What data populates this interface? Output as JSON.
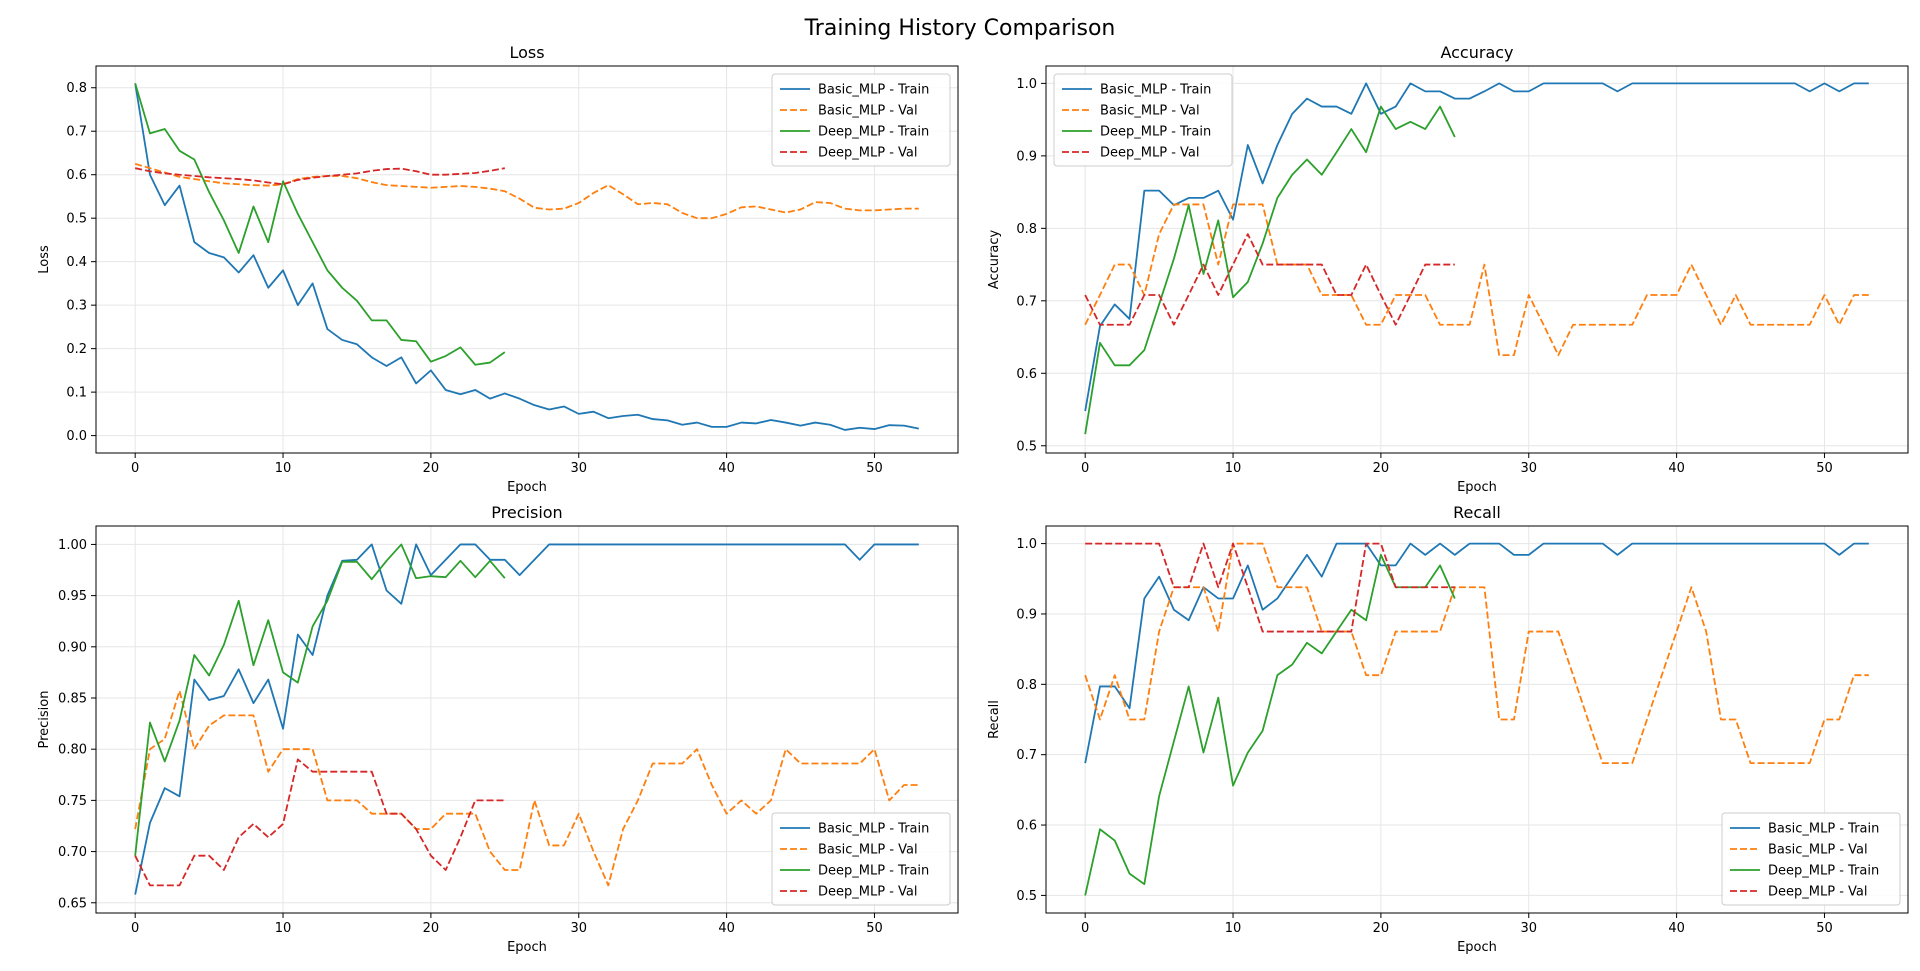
{
  "title": "Training History Comparison",
  "chart_data": [
    {
      "type": "line",
      "title": "Loss",
      "xlabel": "Epoch",
      "ylabel": "Loss",
      "xlim": [
        -2.65,
        55.65
      ],
      "ylim": [
        -0.04,
        0.85
      ],
      "xticks": [
        0,
        10,
        20,
        30,
        40,
        50
      ],
      "yticks": [
        0.0,
        0.1,
        0.2,
        0.3,
        0.4,
        0.5,
        0.6,
        0.7,
        0.8
      ],
      "ytick_decimals": 1,
      "grid": true,
      "legend_position": "top-right",
      "series": [
        {
          "name": "Basic_MLP - Train",
          "color": "#1f77b4",
          "dash": "solid",
          "start": 0,
          "values": [
            0.81,
            0.6,
            0.53,
            0.575,
            0.445,
            0.42,
            0.41,
            0.375,
            0.415,
            0.34,
            0.38,
            0.3,
            0.35,
            0.245,
            0.22,
            0.21,
            0.18,
            0.16,
            0.18,
            0.12,
            0.15,
            0.105,
            0.095,
            0.105,
            0.085,
            0.097,
            0.085,
            0.07,
            0.06,
            0.067,
            0.05,
            0.055,
            0.04,
            0.045,
            0.048,
            0.038,
            0.035,
            0.025,
            0.03,
            0.02,
            0.02,
            0.03,
            0.028,
            0.036,
            0.03,
            0.023,
            0.03,
            0.025,
            0.013,
            0.018,
            0.015,
            0.024,
            0.023,
            0.016
          ]
        },
        {
          "name": "Basic_MLP - Val",
          "color": "#ff7f0e",
          "dash": "dashed",
          "start": 0,
          "values": [
            0.625,
            0.615,
            0.605,
            0.595,
            0.59,
            0.585,
            0.58,
            0.578,
            0.576,
            0.575,
            0.578,
            0.59,
            0.595,
            0.597,
            0.597,
            0.592,
            0.583,
            0.576,
            0.574,
            0.572,
            0.57,
            0.572,
            0.574,
            0.572,
            0.568,
            0.562,
            0.545,
            0.524,
            0.52,
            0.522,
            0.535,
            0.558,
            0.576,
            0.555,
            0.532,
            0.535,
            0.532,
            0.512,
            0.5,
            0.5,
            0.51,
            0.525,
            0.527,
            0.52,
            0.513,
            0.52,
            0.537,
            0.535,
            0.522,
            0.518,
            0.518,
            0.52,
            0.522,
            0.522
          ]
        },
        {
          "name": "Deep_MLP - Train",
          "color": "#2ca02c",
          "dash": "solid",
          "start": 0,
          "values": [
            0.81,
            0.695,
            0.705,
            0.655,
            0.635,
            0.56,
            0.495,
            0.42,
            0.527,
            0.445,
            0.585,
            0.51,
            0.445,
            0.38,
            0.34,
            0.31,
            0.265,
            0.265,
            0.22,
            0.217,
            0.17,
            0.183,
            0.203,
            0.163,
            0.168,
            0.192
          ]
        },
        {
          "name": "Deep_MLP - Val",
          "color": "#d62728",
          "dash": "dashed",
          "start": 0,
          "values": [
            0.615,
            0.608,
            0.603,
            0.6,
            0.597,
            0.594,
            0.592,
            0.59,
            0.587,
            0.582,
            0.578,
            0.588,
            0.593,
            0.597,
            0.6,
            0.603,
            0.609,
            0.613,
            0.614,
            0.608,
            0.6,
            0.6,
            0.602,
            0.604,
            0.609,
            0.615
          ]
        }
      ]
    },
    {
      "type": "line",
      "title": "Accuracy",
      "xlabel": "Epoch",
      "ylabel": "Accuracy",
      "xlim": [
        -2.65,
        55.65
      ],
      "ylim": [
        0.49,
        1.024
      ],
      "xticks": [
        0,
        10,
        20,
        30,
        40,
        50
      ],
      "yticks": [
        0.5,
        0.6,
        0.7,
        0.8,
        0.9,
        1.0
      ],
      "ytick_decimals": 1,
      "grid": true,
      "legend_position": "top-left",
      "series": [
        {
          "name": "Basic_MLP - Train",
          "color": "#1f77b4",
          "dash": "solid",
          "start": 0,
          "values": [
            0.548,
            0.665,
            0.695,
            0.675,
            0.852,
            0.852,
            0.832,
            0.842,
            0.842,
            0.852,
            0.812,
            0.915,
            0.862,
            0.915,
            0.958,
            0.979,
            0.968,
            0.968,
            0.958,
            1.0,
            0.958,
            0.968,
            1.0,
            0.989,
            0.989,
            0.979,
            0.979,
            0.989,
            1.0,
            0.989,
            0.989,
            1.0,
            1.0,
            1.0,
            1.0,
            1.0,
            0.989,
            1.0,
            1.0,
            1.0,
            1.0,
            1.0,
            1.0,
            1.0,
            1.0,
            1.0,
            1.0,
            1.0,
            1.0,
            0.989,
            1.0,
            0.989,
            1.0,
            1.0
          ]
        },
        {
          "name": "Basic_MLP - Val",
          "color": "#ff7f0e",
          "dash": "dashed",
          "start": 0,
          "values": [
            0.667,
            0.708,
            0.75,
            0.75,
            0.708,
            0.792,
            0.833,
            0.833,
            0.833,
            0.75,
            0.833,
            0.833,
            0.833,
            0.75,
            0.75,
            0.75,
            0.708,
            0.708,
            0.708,
            0.667,
            0.667,
            0.708,
            0.708,
            0.708,
            0.667,
            0.667,
            0.667,
            0.75,
            0.625,
            0.625,
            0.708,
            0.667,
            0.625,
            0.667,
            0.667,
            0.667,
            0.667,
            0.667,
            0.708,
            0.708,
            0.708,
            0.75,
            0.708,
            0.667,
            0.708,
            0.667,
            0.667,
            0.667,
            0.667,
            0.667,
            0.708,
            0.667,
            0.708,
            0.708
          ]
        },
        {
          "name": "Deep_MLP - Train",
          "color": "#2ca02c",
          "dash": "solid",
          "start": 0,
          "values": [
            0.516,
            0.642,
            0.611,
            0.611,
            0.632,
            0.695,
            0.758,
            0.832,
            0.737,
            0.811,
            0.705,
            0.726,
            0.779,
            0.842,
            0.874,
            0.895,
            0.874,
            0.905,
            0.937,
            0.905,
            0.968,
            0.937,
            0.947,
            0.937,
            0.968,
            0.926
          ]
        },
        {
          "name": "Deep_MLP - Val",
          "color": "#d62728",
          "dash": "dashed",
          "start": 0,
          "values": [
            0.708,
            0.667,
            0.667,
            0.667,
            0.708,
            0.708,
            0.667,
            0.708,
            0.75,
            0.708,
            0.75,
            0.792,
            0.75,
            0.75,
            0.75,
            0.75,
            0.75,
            0.708,
            0.708,
            0.75,
            0.708,
            0.667,
            0.708,
            0.75,
            0.75,
            0.75
          ]
        }
      ]
    },
    {
      "type": "line",
      "title": "Precision",
      "xlabel": "Epoch",
      "ylabel": "Precision",
      "xlim": [
        -2.65,
        55.65
      ],
      "ylim": [
        0.64,
        1.018
      ],
      "xticks": [
        0,
        10,
        20,
        30,
        40,
        50
      ],
      "yticks": [
        0.65,
        0.7,
        0.75,
        0.8,
        0.85,
        0.9,
        0.95,
        1.0
      ],
      "ytick_decimals": 2,
      "grid": true,
      "legend_position": "bottom-right",
      "series": [
        {
          "name": "Basic_MLP - Train",
          "color": "#1f77b4",
          "dash": "solid",
          "start": 0,
          "values": [
            0.658,
            0.728,
            0.762,
            0.754,
            0.868,
            0.848,
            0.852,
            0.878,
            0.845,
            0.868,
            0.82,
            0.912,
            0.892,
            0.95,
            0.984,
            0.985,
            1.0,
            0.955,
            0.942,
            1.0,
            0.97,
            0.985,
            1.0,
            1.0,
            0.985,
            0.985,
            0.97,
            0.985,
            1.0,
            1.0,
            1.0,
            1.0,
            1.0,
            1.0,
            1.0,
            1.0,
            1.0,
            1.0,
            1.0,
            1.0,
            1.0,
            1.0,
            1.0,
            1.0,
            1.0,
            1.0,
            1.0,
            1.0,
            1.0,
            0.985,
            1.0,
            1.0,
            1.0,
            1.0
          ]
        },
        {
          "name": "Basic_MLP - Val",
          "color": "#ff7f0e",
          "dash": "dashed",
          "start": 0,
          "values": [
            0.722,
            0.8,
            0.81,
            0.857,
            0.8,
            0.823,
            0.833,
            0.833,
            0.833,
            0.778,
            0.8,
            0.8,
            0.8,
            0.75,
            0.75,
            0.75,
            0.737,
            0.737,
            0.737,
            0.722,
            0.722,
            0.737,
            0.737,
            0.737,
            0.7,
            0.682,
            0.682,
            0.75,
            0.706,
            0.706,
            0.737,
            0.7,
            0.667,
            0.722,
            0.75,
            0.786,
            0.786,
            0.786,
            0.8,
            0.765,
            0.737,
            0.75,
            0.737,
            0.75,
            0.8,
            0.786,
            0.786,
            0.786,
            0.786,
            0.786,
            0.8,
            0.75,
            0.765,
            0.765
          ]
        },
        {
          "name": "Deep_MLP - Train",
          "color": "#2ca02c",
          "dash": "solid",
          "start": 0,
          "values": [
            0.696,
            0.826,
            0.788,
            0.828,
            0.892,
            0.872,
            0.902,
            0.945,
            0.882,
            0.926,
            0.875,
            0.865,
            0.92,
            0.945,
            0.983,
            0.983,
            0.966,
            0.984,
            1.0,
            0.967,
            0.969,
            0.968,
            0.984,
            0.968,
            0.984,
            0.967
          ]
        },
        {
          "name": "Deep_MLP - Val",
          "color": "#d62728",
          "dash": "dashed",
          "start": 0,
          "values": [
            0.696,
            0.667,
            0.667,
            0.667,
            0.696,
            0.696,
            0.682,
            0.714,
            0.727,
            0.714,
            0.727,
            0.79,
            0.778,
            0.778,
            0.778,
            0.778,
            0.778,
            0.737,
            0.737,
            0.722,
            0.696,
            0.682,
            0.714,
            0.75,
            0.75,
            0.75
          ]
        }
      ]
    },
    {
      "type": "line",
      "title": "Recall",
      "xlabel": "Epoch",
      "ylabel": "Recall",
      "xlim": [
        -2.65,
        55.65
      ],
      "ylim": [
        0.475,
        1.025
      ],
      "xticks": [
        0,
        10,
        20,
        30,
        40,
        50
      ],
      "yticks": [
        0.5,
        0.6,
        0.7,
        0.8,
        0.9,
        1.0
      ],
      "ytick_decimals": 1,
      "grid": true,
      "legend_position": "bottom-right",
      "series": [
        {
          "name": "Basic_MLP - Train",
          "color": "#1f77b4",
          "dash": "solid",
          "start": 0,
          "values": [
            0.688,
            0.797,
            0.797,
            0.766,
            0.922,
            0.953,
            0.906,
            0.891,
            0.938,
            0.922,
            0.922,
            0.969,
            0.906,
            0.922,
            0.953,
            0.984,
            0.953,
            1.0,
            1.0,
            1.0,
            0.969,
            0.969,
            1.0,
            0.984,
            1.0,
            0.984,
            1.0,
            1.0,
            1.0,
            0.984,
            0.984,
            1.0,
            1.0,
            1.0,
            1.0,
            1.0,
            0.984,
            1.0,
            1.0,
            1.0,
            1.0,
            1.0,
            1.0,
            1.0,
            1.0,
            1.0,
            1.0,
            1.0,
            1.0,
            1.0,
            1.0,
            0.984,
            1.0,
            1.0
          ]
        },
        {
          "name": "Basic_MLP - Val",
          "color": "#ff7f0e",
          "dash": "dashed",
          "start": 0,
          "values": [
            0.813,
            0.75,
            0.813,
            0.75,
            0.75,
            0.875,
            0.938,
            0.938,
            0.938,
            0.875,
            1.0,
            1.0,
            1.0,
            0.938,
            0.938,
            0.938,
            0.875,
            0.875,
            0.875,
            0.813,
            0.813,
            0.875,
            0.875,
            0.875,
            0.875,
            0.938,
            0.938,
            0.938,
            0.75,
            0.75,
            0.875,
            0.875,
            0.875,
            0.813,
            0.75,
            0.688,
            0.688,
            0.688,
            0.75,
            0.813,
            0.875,
            0.938,
            0.875,
            0.75,
            0.75,
            0.688,
            0.688,
            0.688,
            0.688,
            0.688,
            0.75,
            0.75,
            0.813,
            0.813
          ]
        },
        {
          "name": "Deep_MLP - Train",
          "color": "#2ca02c",
          "dash": "solid",
          "start": 0,
          "values": [
            0.5,
            0.594,
            0.578,
            0.531,
            0.516,
            0.641,
            0.719,
            0.797,
            0.703,
            0.781,
            0.656,
            0.703,
            0.734,
            0.813,
            0.828,
            0.859,
            0.844,
            0.875,
            0.906,
            0.891,
            0.984,
            0.938,
            0.938,
            0.938,
            0.969,
            0.922
          ]
        },
        {
          "name": "Deep_MLP - Val",
          "color": "#d62728",
          "dash": "dashed",
          "start": 0,
          "values": [
            1.0,
            1.0,
            1.0,
            1.0,
            1.0,
            1.0,
            0.938,
            0.938,
            1.0,
            0.938,
            1.0,
            0.938,
            0.875,
            0.875,
            0.875,
            0.875,
            0.875,
            0.875,
            0.875,
            1.0,
            1.0,
            0.938,
            0.938,
            0.938,
            0.938,
            0.938
          ]
        }
      ]
    }
  ]
}
